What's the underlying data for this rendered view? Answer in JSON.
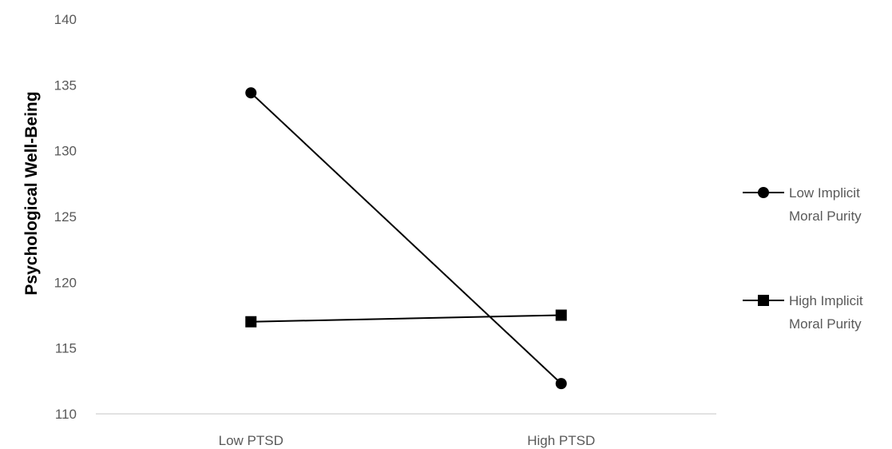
{
  "chart_data": {
    "type": "line",
    "categories": [
      "Low PTSD",
      "High PTSD"
    ],
    "series": [
      {
        "name_lines": [
          "Low Implicit",
          "Moral Purity"
        ],
        "marker": "circle",
        "values": [
          134.4,
          112.3
        ]
      },
      {
        "name_lines": [
          "High Implicit",
          "Moral Purity"
        ],
        "marker": "square",
        "values": [
          117.0,
          117.5
        ]
      }
    ],
    "ylabel": "Psychological Well-Being",
    "ylim": [
      110,
      140
    ],
    "yticks": [
      "110",
      "115",
      "120",
      "125",
      "130",
      "135",
      "140"
    ],
    "grid": false,
    "legend_position": "right",
    "line_color": "#000000",
    "axis_color": "#d9d9d9"
  }
}
